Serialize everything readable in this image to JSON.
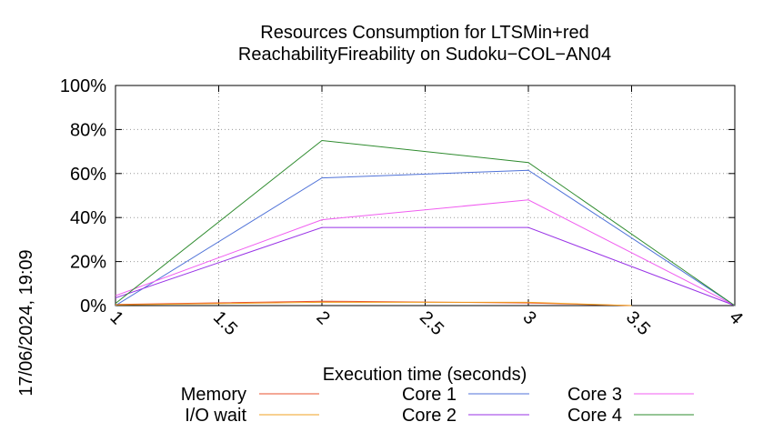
{
  "chart_data": {
    "type": "line",
    "title": [
      "Resources Consumption for LTSMin+red",
      "ReachabilityFireability on Sudoku−COL−AN04"
    ],
    "xlabel": "Execution time (seconds)",
    "ylabel": "",
    "side_label": "17/06/2024, 19:09",
    "xlim": [
      1,
      4
    ],
    "ylim": [
      0,
      100
    ],
    "x_ticks": [
      1,
      1.5,
      2,
      2.5,
      3,
      3.5,
      4
    ],
    "x_tick_labels": [
      "1",
      "1.5",
      "2",
      "2.5",
      "3",
      "3.5",
      "4"
    ],
    "y_ticks": [
      0,
      20,
      40,
      60,
      80,
      100
    ],
    "y_tick_labels": [
      "0%",
      "20%",
      "40%",
      "60%",
      "80%",
      "100%"
    ],
    "grid": true,
    "legend_position": "bottom",
    "series": [
      {
        "name": "Memory",
        "color": "#e8512d",
        "x": [
          1,
          2,
          3,
          3.5
        ],
        "values": [
          0.5,
          2,
          1.2,
          0
        ]
      },
      {
        "name": "Core 1",
        "color": "#4f72d8",
        "x": [
          1,
          2,
          3,
          4
        ],
        "values": [
          0,
          58,
          61.5,
          0
        ]
      },
      {
        "name": "Core 3",
        "color": "#f05cf0",
        "x": [
          1,
          2,
          3,
          4
        ],
        "values": [
          4.5,
          39,
          48,
          0
        ]
      },
      {
        "name": "I/O wait",
        "color": "#f0a020",
        "x": [
          1,
          2,
          3,
          3.5
        ],
        "values": [
          0.3,
          1.5,
          1.5,
          0
        ]
      },
      {
        "name": "Core 2",
        "color": "#9933e6",
        "x": [
          1,
          2,
          3,
          4
        ],
        "values": [
          3.5,
          35.5,
          35.5,
          0
        ]
      },
      {
        "name": "Core 4",
        "color": "#2e8b2e",
        "x": [
          1,
          2,
          3,
          4
        ],
        "values": [
          1,
          75,
          65,
          0
        ]
      }
    ]
  }
}
